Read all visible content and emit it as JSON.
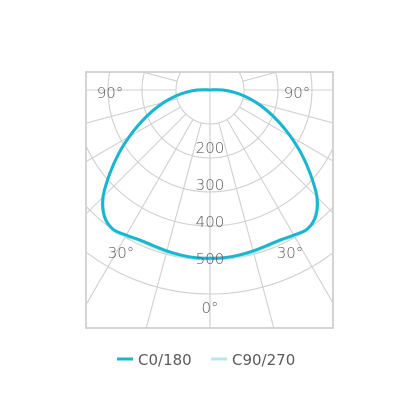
{
  "chart_data": {
    "type": "polar",
    "radial_axis": {
      "ticks": [
        200,
        300,
        400,
        500
      ],
      "tick_labels": [
        "200",
        "300",
        "400",
        "500"
      ],
      "max": 500
    },
    "angle_labels": {
      "left_top": "90°",
      "right_top": "90°",
      "left_mid": "30°",
      "right_mid": "30°",
      "bottom": "0°"
    },
    "series": [
      {
        "name": "C0/180",
        "color": "#1ab6cf",
        "points": [
          {
            "angle": 0,
            "value": 495
          },
          {
            "angle": 5,
            "value": 495
          },
          {
            "angle": 10,
            "value": 493
          },
          {
            "angle": 15,
            "value": 490
          },
          {
            "angle": 20,
            "value": 487
          },
          {
            "angle": 25,
            "value": 487
          },
          {
            "angle": 30,
            "value": 493
          },
          {
            "angle": 35,
            "value": 499
          },
          {
            "angle": 40,
            "value": 484
          },
          {
            "angle": 45,
            "value": 445
          },
          {
            "angle": 50,
            "value": 386
          },
          {
            "angle": 55,
            "value": 329
          },
          {
            "angle": 60,
            "value": 274
          },
          {
            "angle": 65,
            "value": 224
          },
          {
            "angle": 70,
            "value": 180
          },
          {
            "angle": 75,
            "value": 140
          },
          {
            "angle": 80,
            "value": 103
          },
          {
            "angle": 85,
            "value": 69
          },
          {
            "angle": 90,
            "value": 38
          },
          {
            "angle": 95,
            "value": 10
          }
        ]
      },
      {
        "name": "C90/270",
        "color": "#b7e6ee",
        "points": [
          {
            "angle": 0,
            "value": 495
          },
          {
            "angle": 5,
            "value": 496
          },
          {
            "angle": 10,
            "value": 496
          },
          {
            "angle": 15,
            "value": 494
          },
          {
            "angle": 20,
            "value": 490
          },
          {
            "angle": 25,
            "value": 489
          },
          {
            "angle": 30,
            "value": 496
          },
          {
            "angle": 35,
            "value": 500
          },
          {
            "angle": 40,
            "value": 482
          },
          {
            "angle": 45,
            "value": 443
          },
          {
            "angle": 50,
            "value": 385
          },
          {
            "angle": 55,
            "value": 328
          },
          {
            "angle": 60,
            "value": 273
          },
          {
            "angle": 65,
            "value": 223
          },
          {
            "angle": 70,
            "value": 179
          },
          {
            "angle": 75,
            "value": 139
          },
          {
            "angle": 80,
            "value": 102
          },
          {
            "angle": 85,
            "value": 68
          },
          {
            "angle": 90,
            "value": 37
          },
          {
            "angle": 95,
            "value": 10
          }
        ]
      }
    ],
    "grid": true
  },
  "legend": [
    {
      "label": "C0/180",
      "color": "#1ab6cf"
    },
    {
      "label": "C90/270",
      "color": "#b7e6ee"
    }
  ],
  "colors": {
    "grid": "#d0d0d0",
    "frame": "#c9c9c9",
    "text": "#5a5a5a"
  }
}
